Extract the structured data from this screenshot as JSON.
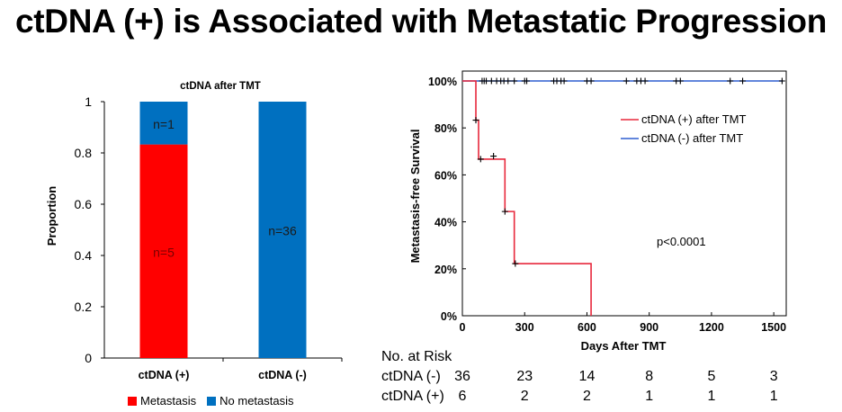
{
  "slide": {
    "title": "ctDNA (+) is Associated with Metastatic Progression"
  },
  "chart_data": [
    {
      "type": "bar",
      "stacked": true,
      "title": "ctDNA after TMT",
      "xlabel": "",
      "ylabel": "Proportion",
      "ylim": [
        0,
        1
      ],
      "yticks": [
        "0",
        "0.2",
        "0.4",
        "0.6",
        "0.8",
        "1"
      ],
      "categories": [
        "ctDNA (+)",
        "ctDNA (-)"
      ],
      "series": [
        {
          "name": "Metastasis",
          "color": "#ff0000",
          "values": [
            0.833,
            0.0
          ],
          "labels": [
            "n=5",
            ""
          ]
        },
        {
          "name": "No metastasis",
          "color": "#0070c0",
          "values": [
            0.167,
            1.0
          ],
          "labels": [
            "n=1",
            "n=36"
          ]
        }
      ],
      "legend": "bottom"
    },
    {
      "type": "line",
      "step": true,
      "title": "",
      "xlabel": "Days After TMT",
      "ylabel": "Metastasis-free Survival",
      "xlim": [
        0,
        1560
      ],
      "ylim": [
        0,
        100
      ],
      "xticks": [
        0,
        300,
        600,
        900,
        1200,
        1500
      ],
      "yticks": [
        "0%",
        "20%",
        "40%",
        "60%",
        "80%",
        "100%"
      ],
      "series": [
        {
          "name": "ctDNA (+) after TMT",
          "color": "#e8283c",
          "x": [
            0,
            65,
            65,
            78,
            78,
            205,
            205,
            250,
            250,
            620,
            620
          ],
          "y": [
            100,
            100,
            83.3,
            83.3,
            66.7,
            66.7,
            44.4,
            44.4,
            22.2,
            22.2,
            0
          ],
          "censor": [
            [
              65,
              83.3
            ],
            [
              88,
              66.7
            ],
            [
              150,
              68
            ],
            [
              205,
              44.4
            ],
            [
              255,
              22.2
            ]
          ]
        },
        {
          "name": "ctDNA (-) after TMT",
          "color": "#2f5fd0",
          "x": [
            0,
            1545
          ],
          "y": [
            100,
            100
          ],
          "censor_x": [
            95,
            105,
            115,
            140,
            165,
            185,
            200,
            220,
            250,
            300,
            310,
            440,
            455,
            475,
            490,
            600,
            620,
            790,
            840,
            860,
            880,
            1030,
            1050,
            1290,
            1350,
            1540
          ]
        }
      ],
      "annotation": "p<0.0001",
      "legend": "top-right"
    }
  ],
  "risk_table": {
    "header": "No. at Risk",
    "rows": [
      {
        "label": "ctDNA (-)",
        "counts": [
          "36",
          "23",
          "14",
          "8",
          "5",
          "3"
        ]
      },
      {
        "label": "ctDNA (+)",
        "counts": [
          "6",
          "2",
          "2",
          "1",
          "1",
          "1"
        ]
      }
    ]
  }
}
